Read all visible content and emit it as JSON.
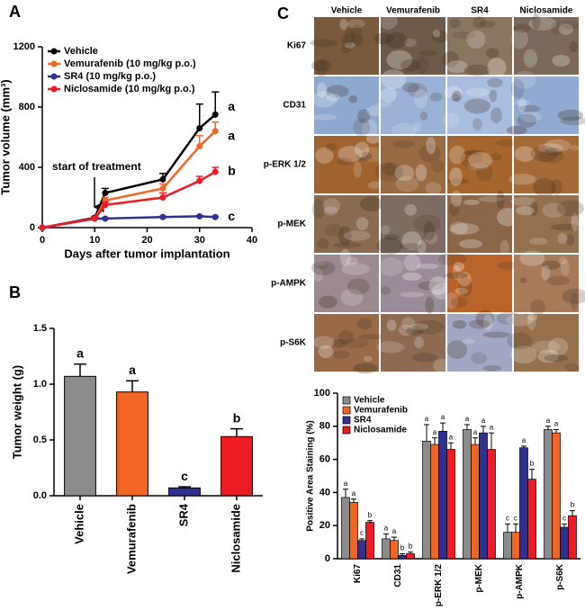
{
  "panel_labels": [
    "A",
    "B",
    "C"
  ],
  "ihc_grid": {
    "columns": [
      "Vehicle",
      "Vemurafenib",
      "SR4",
      "Niclosamide"
    ],
    "rows": [
      "Ki67",
      "CD31",
      "p-ERK 1/2",
      "p-MEK",
      "p-AMPK",
      "p-S6K"
    ]
  },
  "chart_data": [
    {
      "type": "line",
      "xlabel": "Days after tumor implantation",
      "ylabel": "Tumor volume (mm³)",
      "annotation": "start of treatment",
      "x": [
        0,
        10,
        12,
        23,
        30,
        33
      ],
      "xlim": [
        0,
        40
      ],
      "xticks": [
        0,
        10,
        20,
        30,
        40
      ],
      "ylim": [
        0,
        1200
      ],
      "yticks": [
        0,
        400,
        800,
        1200
      ],
      "legend": "upper left",
      "series": [
        {
          "name": "Vehicle",
          "color": "#000000",
          "values": [
            0,
            65,
            230,
            320,
            660,
            750
          ],
          "errors": [
            0,
            10,
            30,
            40,
            160,
            150
          ],
          "letter": "a"
        },
        {
          "name": "Vemurafenib (10 mg/kg p.o.)",
          "color": "#f26522",
          "values": [
            0,
            60,
            180,
            260,
            540,
            640
          ],
          "errors": [
            0,
            10,
            20,
            30,
            70,
            60
          ],
          "letter": "a"
        },
        {
          "name": "SR4 (10 mg/kg p.o.)",
          "color": "#2e3192",
          "values": [
            0,
            60,
            60,
            70,
            75,
            70
          ],
          "errors": [
            0,
            5,
            5,
            5,
            5,
            5
          ],
          "letter": "c"
        },
        {
          "name": "Niclosamide (10 mg/kg p.o.)",
          "color": "#ed1c24",
          "values": [
            0,
            60,
            150,
            200,
            310,
            370
          ],
          "errors": [
            0,
            10,
            20,
            30,
            30,
            30
          ],
          "letter": "b"
        }
      ]
    },
    {
      "type": "bar",
      "ylabel": "Tumor weight (g)",
      "categories": [
        "Vehicle",
        "Vemurafenib",
        "SR4",
        "Niclosamide"
      ],
      "values": [
        1.07,
        0.93,
        0.07,
        0.53
      ],
      "errors": [
        0.11,
        0.1,
        0.01,
        0.07
      ],
      "letters": [
        "a",
        "a",
        "c",
        "b"
      ],
      "colors": [
        "#8c8c8c",
        "#f26522",
        "#2e3192",
        "#ed1c24"
      ],
      "ylim": [
        0,
        1.5
      ],
      "yticks": [
        {
          "value": 0,
          "label": "0.0"
        },
        {
          "value": 0.5,
          "label": "0.5"
        },
        {
          "value": 1,
          "label": "1.0"
        },
        {
          "value": 1.5,
          "label": "1.5"
        }
      ]
    },
    {
      "type": "grouped-bar",
      "ylabel": "Positive Area Staining (%)",
      "categories": [
        "Ki67",
        "CD31",
        "p-ERK 1/2",
        "p-MEK",
        "p-AMPK",
        "p-S6K"
      ],
      "ylim": [
        0,
        100
      ],
      "yticks": [
        0,
        20,
        40,
        60,
        80,
        100
      ],
      "legend": "upper left",
      "series": [
        {
          "name": "Vehicle",
          "color": "#8c8c8c",
          "values": [
            37,
            12,
            71,
            78,
            16,
            78
          ],
          "errors": [
            5,
            3,
            10,
            3,
            5,
            2
          ],
          "letters": [
            "a",
            "a",
            "a",
            "a",
            "c",
            "a"
          ]
        },
        {
          "name": "Vemurafenib",
          "color": "#f26522",
          "values": [
            34,
            11,
            69,
            69,
            16,
            76
          ],
          "errors": [
            2,
            2,
            4,
            4,
            5,
            2
          ],
          "letters": [
            "a",
            "a",
            "a",
            "a",
            "c",
            "a"
          ]
        },
        {
          "name": "SR4",
          "color": "#2e3192",
          "values": [
            11,
            2,
            77,
            76,
            67,
            19
          ],
          "errors": [
            1,
            1,
            5,
            4,
            1,
            2
          ],
          "letters": [
            "c",
            "b",
            "a",
            "a",
            "a",
            "c"
          ]
        },
        {
          "name": "Niclosamide",
          "color": "#ed1c24",
          "values": [
            22,
            3,
            66,
            66,
            48,
            26
          ],
          "errors": [
            1,
            1,
            4,
            10,
            6,
            3
          ],
          "letters": [
            "b",
            "b",
            "a",
            "a",
            "b",
            "b"
          ]
        }
      ]
    }
  ]
}
